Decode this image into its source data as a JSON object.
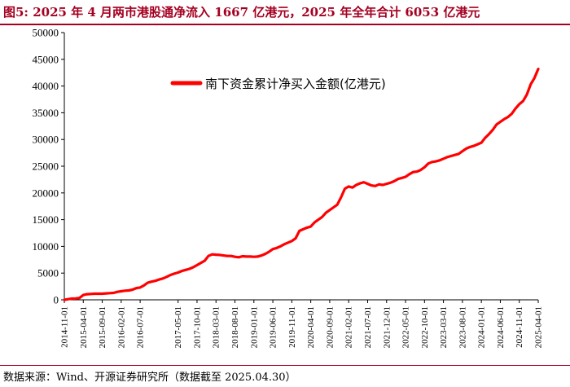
{
  "header": {
    "title": "图5:  2025 年 4 月两市港股通净流入 1667 亿港元，2025 年全年合计 6053 亿港元"
  },
  "footer": {
    "source": "数据来源：Wind、开源证券研究所（数据截至 2025.04.30）"
  },
  "colors": {
    "accent": "#a50021",
    "series": "#ff0000",
    "axis": "#000000"
  },
  "chart_data": {
    "type": "line",
    "title": "",
    "xlabel": "",
    "ylabel": "",
    "ylim": [
      0,
      50000
    ],
    "yticks": [
      0,
      5000,
      10000,
      15000,
      20000,
      25000,
      30000,
      35000,
      40000,
      45000,
      50000
    ],
    "legend_position": "top-center",
    "grid": false,
    "x_tick_labels": [
      "2014-11-01",
      "2015-04-01",
      "2015-09-01",
      "2016-02-01",
      "2016-07-01",
      "2017-05-01",
      "2017-10-01",
      "2018-03-01",
      "2018-08-01",
      "2019-01-01",
      "2019-06-01",
      "2019-11-01",
      "2020-04-01",
      "2020-09-01",
      "2021-02-01",
      "2021-07-01",
      "2021-12-01",
      "2022-05-01",
      "2022-10-01",
      "2023-03-01",
      "2023-08-01",
      "2024-01-01",
      "2024-06-01",
      "2024-11-01",
      "2025-04-01"
    ],
    "series": [
      {
        "name": "南下资金累计净买入金额(亿港元)",
        "points": [
          [
            "2014-11-01",
            0
          ],
          [
            "2014-12-01",
            120
          ],
          [
            "2015-01-01",
            230
          ],
          [
            "2015-02-01",
            260
          ],
          [
            "2015-03-01",
            350
          ],
          [
            "2015-04-01",
            900
          ],
          [
            "2015-05-01",
            1050
          ],
          [
            "2015-06-01",
            1100
          ],
          [
            "2015-07-01",
            1150
          ],
          [
            "2015-08-01",
            1150
          ],
          [
            "2015-09-01",
            1150
          ],
          [
            "2015-10-01",
            1200
          ],
          [
            "2015-11-01",
            1250
          ],
          [
            "2015-12-01",
            1300
          ],
          [
            "2016-01-01",
            1500
          ],
          [
            "2016-02-01",
            1600
          ],
          [
            "2016-03-01",
            1700
          ],
          [
            "2016-04-01",
            1750
          ],
          [
            "2016-05-01",
            1900
          ],
          [
            "2016-06-01",
            2200
          ],
          [
            "2016-07-01",
            2300
          ],
          [
            "2016-08-01",
            2700
          ],
          [
            "2016-09-01",
            3200
          ],
          [
            "2016-10-01",
            3400
          ],
          [
            "2016-11-01",
            3550
          ],
          [
            "2016-12-01",
            3800
          ],
          [
            "2017-01-01",
            4000
          ],
          [
            "2017-02-01",
            4300
          ],
          [
            "2017-03-01",
            4650
          ],
          [
            "2017-04-01",
            4900
          ],
          [
            "2017-05-01",
            5100
          ],
          [
            "2017-06-01",
            5400
          ],
          [
            "2017-07-01",
            5600
          ],
          [
            "2017-08-01",
            5800
          ],
          [
            "2017-09-01",
            6100
          ],
          [
            "2017-10-01",
            6500
          ],
          [
            "2017-11-01",
            6900
          ],
          [
            "2017-12-01",
            7300
          ],
          [
            "2018-01-01",
            8200
          ],
          [
            "2018-02-01",
            8500
          ],
          [
            "2018-03-01",
            8450
          ],
          [
            "2018-04-01",
            8400
          ],
          [
            "2018-05-01",
            8300
          ],
          [
            "2018-06-01",
            8200
          ],
          [
            "2018-07-01",
            8200
          ],
          [
            "2018-08-01",
            8050
          ],
          [
            "2018-09-01",
            7950
          ],
          [
            "2018-10-01",
            8150
          ],
          [
            "2018-11-01",
            8100
          ],
          [
            "2018-12-01",
            8100
          ],
          [
            "2019-01-01",
            8050
          ],
          [
            "2019-02-01",
            8100
          ],
          [
            "2019-03-01",
            8300
          ],
          [
            "2019-04-01",
            8600
          ],
          [
            "2019-05-01",
            9000
          ],
          [
            "2019-06-01",
            9500
          ],
          [
            "2019-07-01",
            9700
          ],
          [
            "2019-08-01",
            10000
          ],
          [
            "2019-09-01",
            10400
          ],
          [
            "2019-10-01",
            10700
          ],
          [
            "2019-11-01",
            11000
          ],
          [
            "2019-12-01",
            11500
          ],
          [
            "2020-01-01",
            12900
          ],
          [
            "2020-02-01",
            13200
          ],
          [
            "2020-03-01",
            13500
          ],
          [
            "2020-04-01",
            13700
          ],
          [
            "2020-05-01",
            14500
          ],
          [
            "2020-06-01",
            15000
          ],
          [
            "2020-07-01",
            15500
          ],
          [
            "2020-08-01",
            16300
          ],
          [
            "2020-09-01",
            16800
          ],
          [
            "2020-10-01",
            17300
          ],
          [
            "2020-11-01",
            17800
          ],
          [
            "2020-12-01",
            19200
          ],
          [
            "2021-01-01",
            20800
          ],
          [
            "2021-02-01",
            21200
          ],
          [
            "2021-03-01",
            21000
          ],
          [
            "2021-04-01",
            21500
          ],
          [
            "2021-05-01",
            21800
          ],
          [
            "2021-06-01",
            22000
          ],
          [
            "2021-07-01",
            21700
          ],
          [
            "2021-08-01",
            21400
          ],
          [
            "2021-09-01",
            21300
          ],
          [
            "2021-10-01",
            21600
          ],
          [
            "2021-11-01",
            21500
          ],
          [
            "2021-12-01",
            21700
          ],
          [
            "2022-01-01",
            21900
          ],
          [
            "2022-02-01",
            22200
          ],
          [
            "2022-03-01",
            22600
          ],
          [
            "2022-04-01",
            22800
          ],
          [
            "2022-05-01",
            23000
          ],
          [
            "2022-06-01",
            23500
          ],
          [
            "2022-07-01",
            23900
          ],
          [
            "2022-08-01",
            24000
          ],
          [
            "2022-09-01",
            24300
          ],
          [
            "2022-10-01",
            24800
          ],
          [
            "2022-11-01",
            25500
          ],
          [
            "2022-12-01",
            25800
          ],
          [
            "2023-01-01",
            25900
          ],
          [
            "2023-02-01",
            26100
          ],
          [
            "2023-03-01",
            26400
          ],
          [
            "2023-04-01",
            26700
          ],
          [
            "2023-05-01",
            26900
          ],
          [
            "2023-06-01",
            27100
          ],
          [
            "2023-07-01",
            27300
          ],
          [
            "2023-08-01",
            27800
          ],
          [
            "2023-09-01",
            28300
          ],
          [
            "2023-10-01",
            28600
          ],
          [
            "2023-11-01",
            28800
          ],
          [
            "2023-12-01",
            29100
          ],
          [
            "2024-01-01",
            29400
          ],
          [
            "2024-02-01",
            30300
          ],
          [
            "2024-03-01",
            31000
          ],
          [
            "2024-04-01",
            31800
          ],
          [
            "2024-05-01",
            32800
          ],
          [
            "2024-06-01",
            33300
          ],
          [
            "2024-07-01",
            33800
          ],
          [
            "2024-08-01",
            34200
          ],
          [
            "2024-09-01",
            34800
          ],
          [
            "2024-10-01",
            35800
          ],
          [
            "2024-11-01",
            36600
          ],
          [
            "2024-12-01",
            37200
          ],
          [
            "2025-01-01",
            38400
          ],
          [
            "2025-02-01",
            40300
          ],
          [
            "2025-03-01",
            41500
          ],
          [
            "2025-04-01",
            43200
          ]
        ]
      }
    ]
  }
}
